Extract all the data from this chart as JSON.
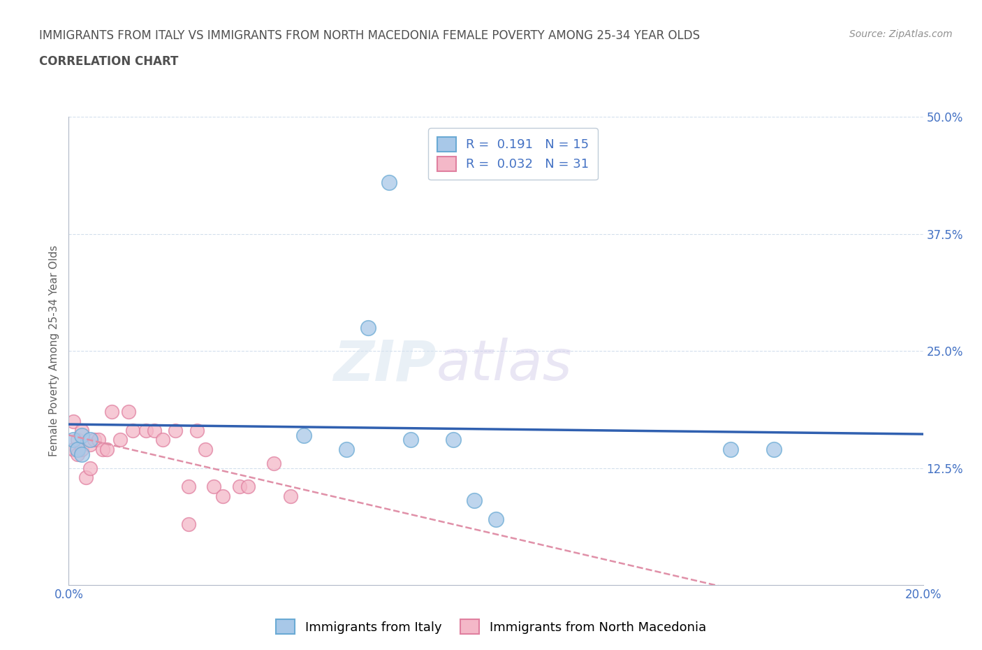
{
  "title_line1": "IMMIGRANTS FROM ITALY VS IMMIGRANTS FROM NORTH MACEDONIA FEMALE POVERTY AMONG 25-34 YEAR OLDS",
  "title_line2": "CORRELATION CHART",
  "source_text": "Source: ZipAtlas.com",
  "ylabel": "Female Poverty Among 25-34 Year Olds",
  "xlim": [
    0.0,
    0.2
  ],
  "ylim": [
    0.0,
    0.5
  ],
  "xticks": [
    0.0,
    0.02,
    0.04,
    0.06,
    0.08,
    0.1,
    0.12,
    0.14,
    0.16,
    0.18,
    0.2
  ],
  "xticklabels": [
    "0.0%",
    "",
    "",
    "",
    "",
    "",
    "",
    "",
    "",
    "",
    "20.0%"
  ],
  "ytick_positions": [
    0.0,
    0.125,
    0.25,
    0.375,
    0.5
  ],
  "ytick_labels": [
    "",
    "12.5%",
    "25.0%",
    "37.5%",
    "50.0%"
  ],
  "watermark_zip": "ZIP",
  "watermark_atlas": "atlas",
  "italy_color": "#a8c8e8",
  "italy_edge_color": "#6aaad4",
  "macedonia_color": "#f4b8c8",
  "macedonia_edge_color": "#e080a0",
  "italy_R": 0.191,
  "italy_N": 15,
  "macedonia_R": 0.032,
  "macedonia_N": 31,
  "italy_line_color": "#3060b0",
  "macedonia_line_color": "#e090a8",
  "legend_label_italy": "Immigrants from Italy",
  "legend_label_macedonia": "Immigrants from North Macedonia",
  "italy_scatter_x": [
    0.001,
    0.002,
    0.003,
    0.003,
    0.005,
    0.055,
    0.07,
    0.075,
    0.08,
    0.09,
    0.095,
    0.155,
    0.165,
    0.065,
    0.1
  ],
  "italy_scatter_y": [
    0.155,
    0.145,
    0.16,
    0.14,
    0.155,
    0.16,
    0.275,
    0.43,
    0.155,
    0.155,
    0.09,
    0.145,
    0.145,
    0.145,
    0.07
  ],
  "macedonia_scatter_x": [
    0.001,
    0.001,
    0.002,
    0.002,
    0.003,
    0.003,
    0.004,
    0.005,
    0.005,
    0.006,
    0.007,
    0.008,
    0.009,
    0.01,
    0.012,
    0.014,
    0.015,
    0.018,
    0.02,
    0.022,
    0.025,
    0.028,
    0.03,
    0.032,
    0.034,
    0.036,
    0.04,
    0.042,
    0.048,
    0.052,
    0.028
  ],
  "macedonia_scatter_y": [
    0.175,
    0.145,
    0.155,
    0.14,
    0.165,
    0.145,
    0.115,
    0.15,
    0.125,
    0.155,
    0.155,
    0.145,
    0.145,
    0.185,
    0.155,
    0.185,
    0.165,
    0.165,
    0.165,
    0.155,
    0.165,
    0.105,
    0.165,
    0.145,
    0.105,
    0.095,
    0.105,
    0.105,
    0.13,
    0.095,
    0.065
  ],
  "background_color": "#ffffff",
  "grid_color": "#c8d8e8",
  "title_color": "#505050",
  "axis_color": "#b0b8c8",
  "tick_label_color": "#4472c4",
  "legend_r_color": "#4472c4"
}
